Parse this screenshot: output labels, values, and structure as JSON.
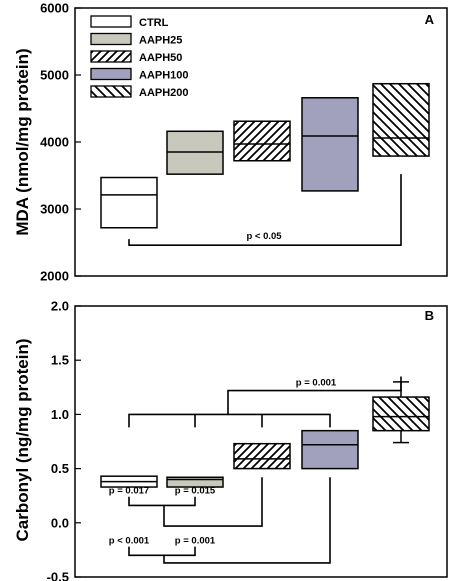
{
  "colors": {
    "CTRL": "#ffffff",
    "AAPH25": "#c8c8bc",
    "AAPH50": "#ffffff",
    "AAPH100": "#a1a1bd",
    "AAPH200": "#ffffff"
  },
  "chart_data": [
    {
      "panel": "A",
      "type": "boxplot",
      "ylabel": "MDA (nmol/mg protein)",
      "ylim": [
        2000,
        6000
      ],
      "yticks": [
        2000,
        3000,
        4000,
        5000,
        6000
      ],
      "legend": {
        "placement": "top-left",
        "entries": [
          {
            "name": "CTRL",
            "pattern": "none"
          },
          {
            "name": "AAPH25",
            "pattern": "none"
          },
          {
            "name": "AAPH50",
            "pattern": "diag-right"
          },
          {
            "name": "AAPH100",
            "pattern": "none"
          },
          {
            "name": "AAPH200",
            "pattern": "diag-left"
          }
        ]
      },
      "boxes": [
        {
          "group": "CTRL",
          "q1": 2720,
          "median": 3210,
          "q3": 3470
        },
        {
          "group": "AAPH25",
          "q1": 3520,
          "median": 3850,
          "q3": 4160
        },
        {
          "group": "AAPH50",
          "q1": 3720,
          "median": 3970,
          "q3": 4310
        },
        {
          "group": "AAPH100",
          "q1": 3270,
          "median": 4090,
          "q3": 4660
        },
        {
          "group": "AAPH200",
          "q1": 3790,
          "median": 4060,
          "q3": 4870
        }
      ],
      "annotations": [
        {
          "label": "p < 0.05",
          "between": [
            "CTRL",
            "AAPH200"
          ],
          "y": 2460
        }
      ]
    },
    {
      "panel": "B",
      "type": "boxplot",
      "ylabel": "Carbonyl (ng/mg protein)",
      "ylim": [
        -0.5,
        2.0
      ],
      "yticks": [
        "-0.5",
        "0.0",
        "0.5",
        "1.0",
        "1.5",
        "2.0"
      ],
      "boxes": [
        {
          "group": "CTRL",
          "q1": 0.33,
          "median": 0.38,
          "q3": 0.43
        },
        {
          "group": "AAPH25",
          "q1": 0.33,
          "median": 0.4,
          "q3": 0.42
        },
        {
          "group": "AAPH50",
          "q1": 0.5,
          "median": 0.59,
          "q3": 0.73
        },
        {
          "group": "AAPH100",
          "q1": 0.5,
          "median": 0.72,
          "q3": 0.85
        },
        {
          "group": "AAPH200",
          "q1": 0.85,
          "median": 0.98,
          "q3": 1.16,
          "whisker_low": 0.74,
          "whisker_high": 1.3
        }
      ],
      "annotations": [
        {
          "label": "p = 0.017",
          "between": [
            "CTRL",
            "AAPH50"
          ],
          "y": -0.03
        },
        {
          "label": "p = 0.015",
          "between": [
            "AAPH25",
            "AAPH50"
          ],
          "y": -0.03
        },
        {
          "label": "p < 0.001",
          "between": [
            "CTRL",
            "AAPH100"
          ],
          "y": -0.37
        },
        {
          "label": "p = 0.001",
          "between": [
            "AAPH25",
            "AAPH100"
          ],
          "y": -0.37
        },
        {
          "label": "p = 0.001",
          "between": [
            "CTRL, AAPH25, AAPH50, AAPH100",
            "AAPH200"
          ],
          "y": 1.22
        }
      ]
    }
  ]
}
